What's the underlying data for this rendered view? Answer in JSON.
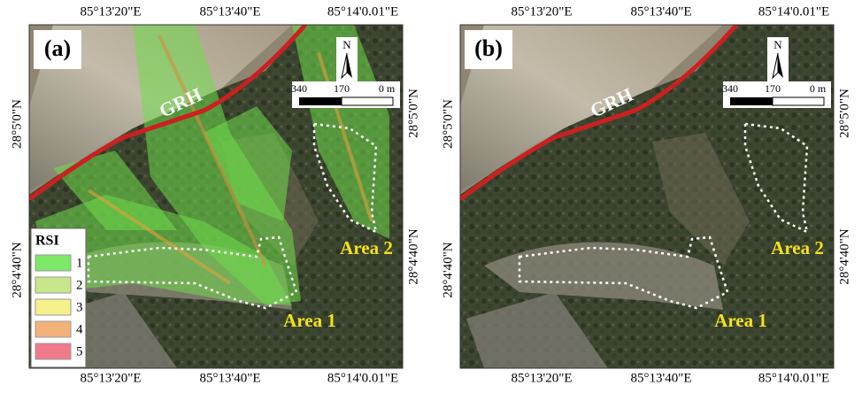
{
  "panels": [
    {
      "label": "(a)",
      "lon_labels_top": [
        "85°13'20\"E",
        "85°13'40\"E",
        "85°14'0.01\"E"
      ],
      "lon_labels_bottom": [
        "85°13'20\"E",
        "85°13'40\"E",
        "85°14'0.01\"E"
      ],
      "lat_labels_left": [
        "28°5'0\"N",
        "28°4'40\"N"
      ],
      "lat_labels_right": [
        "28°5'0\"N",
        "28°4'40\"N"
      ],
      "road_label": "GRH",
      "north": "N",
      "scale_labels": [
        "340",
        "170",
        "0 m"
      ],
      "areas": [
        "Area 1",
        "Area 2"
      ],
      "legend": {
        "title": "RSI",
        "items": [
          "1",
          "2",
          "3",
          "4",
          "5"
        ],
        "colors": [
          "#7ee86a",
          "#c6e88a",
          "#f5f08a",
          "#f2b27a",
          "#f07a8a"
        ]
      }
    },
    {
      "label": "(b)",
      "lon_labels_top": [
        "85°13'20\"E",
        "85°13'40\"E",
        "85°14'0.01\"E"
      ],
      "lon_labels_bottom": [
        "85°13'20\"E",
        "85°13'40\"E",
        "85°14'0.01\"E"
      ],
      "lat_labels_left": [
        "28°5'0\"N",
        "28°4'40\"N"
      ],
      "lat_labels_right": [
        "28°5'0\"N",
        "28°4'40\"N"
      ],
      "road_label": "GRH",
      "north": "N",
      "scale_labels": [
        "340",
        "170",
        "0 m"
      ],
      "areas": [
        "Area 1",
        "Area 2"
      ]
    }
  ]
}
